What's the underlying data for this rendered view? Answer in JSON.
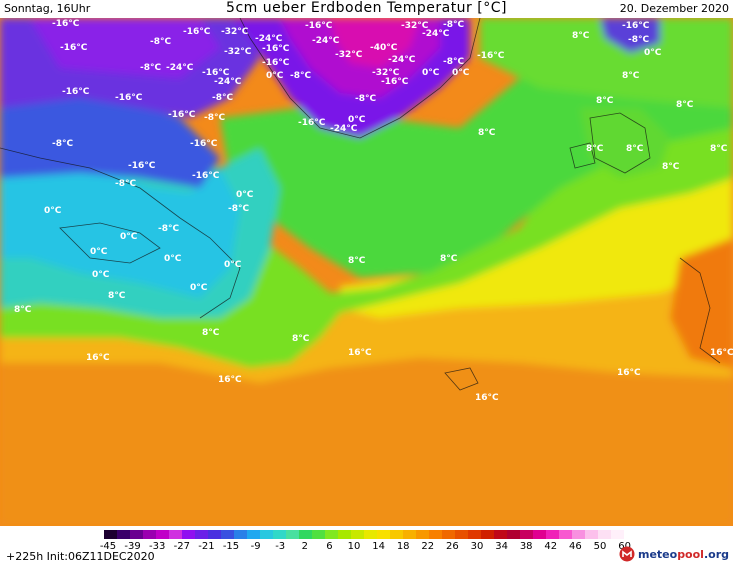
{
  "header": {
    "left": "Sonntag, 16Uhr",
    "title": "5cm ueber Erdboden Temperatur [°C]",
    "right": "20. Dezember 2020"
  },
  "map": {
    "labels": [
      "-16°C",
      "-8°C",
      "0°C",
      "8°C",
      "16°C",
      "-24°C",
      "-32°C",
      "-40°C"
    ]
  },
  "legend": {
    "ticks": [
      "-45",
      "-39",
      "-33",
      "-27",
      "-21",
      "-15",
      "-9",
      "-3",
      "2",
      "6",
      "10",
      "14",
      "18",
      "22",
      "26",
      "30",
      "34",
      "38",
      "42",
      "46",
      "50",
      "60"
    ],
    "colors": [
      "#1c0030",
      "#3a006a",
      "#6a0090",
      "#9a00b0",
      "#c000c8",
      "#d030e0",
      "#9010f0",
      "#6a20e8",
      "#4a30e0",
      "#3a50e0",
      "#2a80e8",
      "#20a8f0",
      "#28c8e0",
      "#30d8c8",
      "#48e0a0",
      "#30d860",
      "#50e040",
      "#80e820",
      "#a8e800",
      "#c8e800",
      "#e8e800",
      "#f8e000",
      "#f8c800",
      "#f8b000",
      "#f89800",
      "#f88000",
      "#f06800",
      "#e85000",
      "#e03800",
      "#d02000",
      "#c00818",
      "#b00030",
      "#c80060",
      "#e00090",
      "#f020b8",
      "#f858d0",
      "#f890e0",
      "#fcc0ec",
      "#fde0f4",
      "#fff0fa"
    ],
    "footer_left": "+225h  Init:06Z11DEC2020",
    "brand_main": "meteo",
    "brand_accent": "pool",
    "brand_suffix": ".org"
  }
}
